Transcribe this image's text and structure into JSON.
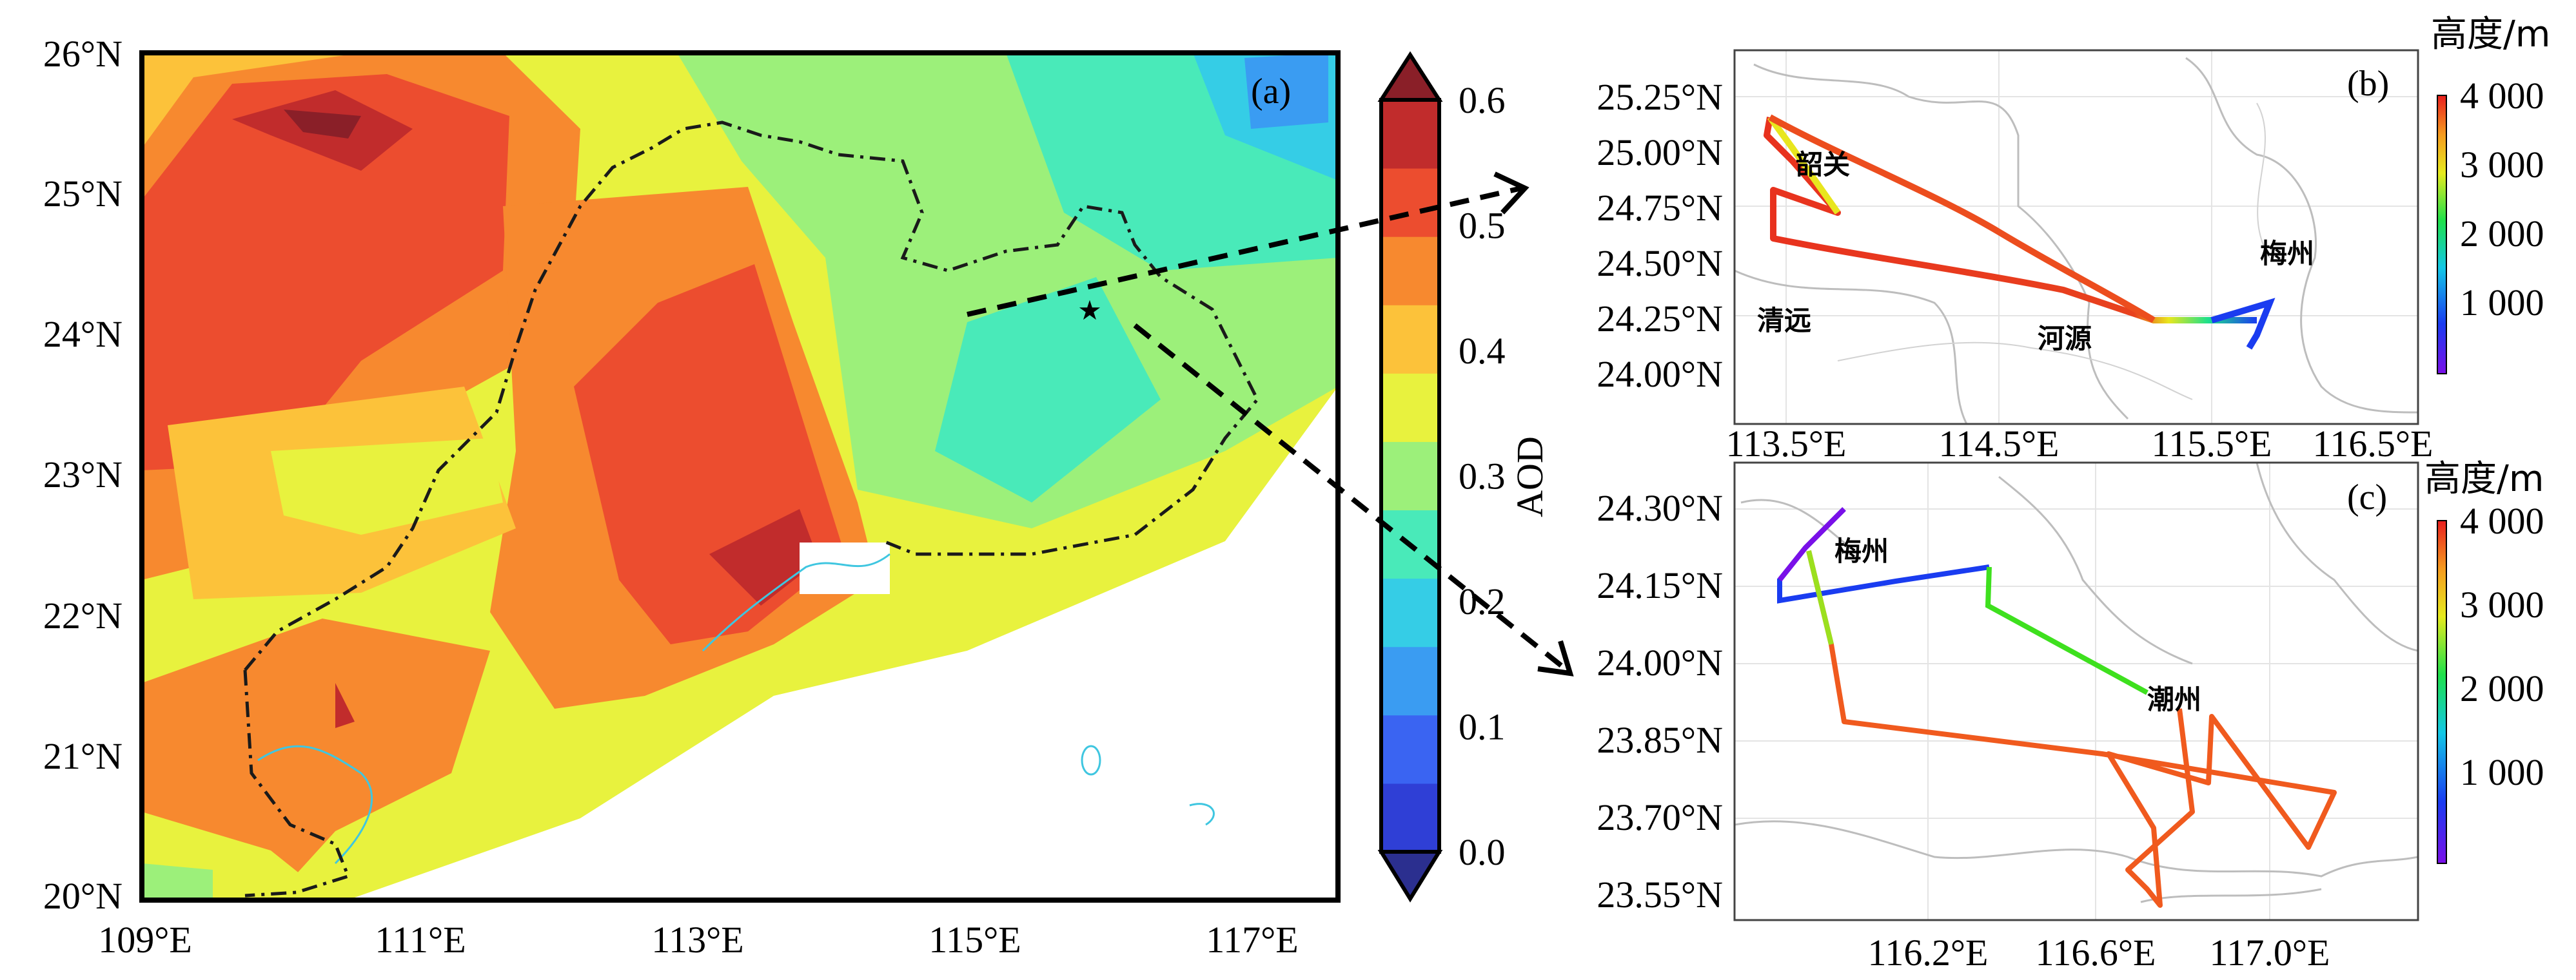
{
  "panel_a": {
    "label": "(a)",
    "x_ticks": [
      "109°E",
      "111°E",
      "113°E",
      "115°E",
      "117°E"
    ],
    "y_ticks": [
      "20°N",
      "21°N",
      "22°N",
      "23°N",
      "24°N",
      "25°N",
      "26°N"
    ],
    "colorbar": {
      "title": "AOD",
      "ticks": [
        "0.0",
        "0.1",
        "0.2",
        "0.3",
        "0.4",
        "0.5",
        "0.6"
      ],
      "colors": [
        "#2b2f8f",
        "#2f3fd6",
        "#3a64f2",
        "#3a9cf2",
        "#35cde6",
        "#49eab9",
        "#9cf07a",
        "#e8f23e",
        "#fcc23a",
        "#f7892f",
        "#ec4d2f",
        "#c12c2c",
        "#8a1f28"
      ]
    },
    "marker": "star"
  },
  "panel_b": {
    "label": "(b)",
    "x_ticks": [
      "113.5°E",
      "114.5°E",
      "115.5°E",
      "116.5°E"
    ],
    "y_ticks": [
      "25.25°N",
      "25.00°N",
      "24.75°N",
      "24.50°N",
      "24.25°N",
      "24.00°N"
    ],
    "places": [
      "韶关",
      "梅州",
      "清远",
      "河源"
    ],
    "colorbar": {
      "title": "高度/m",
      "ticks": [
        "4 000",
        "3 000",
        "2 000",
        "1 000"
      ]
    }
  },
  "panel_c": {
    "label": "(c)",
    "x_ticks": [
      "116.2°E",
      "116.6°E",
      "117.0°E"
    ],
    "y_ticks": [
      "24.30°N",
      "24.15°N",
      "24.00°N",
      "23.85°N",
      "23.70°N",
      "23.55°N"
    ],
    "places": [
      "梅州",
      "潮州"
    ],
    "colorbar": {
      "title": "高度/m",
      "ticks": [
        "4 000",
        "3 000",
        "2 000",
        "1 000"
      ]
    }
  }
}
